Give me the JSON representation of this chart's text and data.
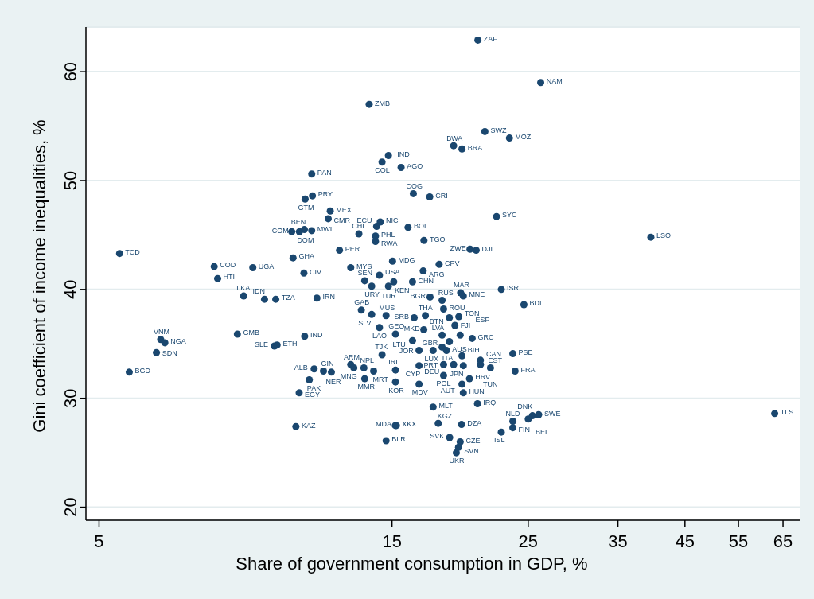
{
  "chart_data": {
    "type": "scatter",
    "xlabel": "Share of government consumption in GDP, %",
    "ylabel": "Gini coefficient of income inequalities, %",
    "x": [
      5.4,
      5.6,
      6.2,
      6.3,
      6.4,
      7.7,
      7.8,
      8.4,
      8.6,
      8.9,
      9.3,
      9.7,
      9.65,
      9.75,
      10.35,
      10.46,
      10.59,
      10.78,
      10.81,
      10.83,
      11.1,
      11.13,
      11.32,
      11.9,
      11.81,
      12.32,
      12.85,
      13.77,
      14.45,
      14.8,
      15.52,
      16.25,
      17.28,
      14.35,
      14.16,
      15.93,
      13.25,
      14.1,
      14.1,
      16.91,
      20.1,
      20.57,
      22.2,
      15.03,
      17.9,
      16.86,
      18.9,
      19.5,
      21.25,
      23.3,
      20.7,
      26.2,
      39.6,
      63.0,
      24.6,
      22.6,
      23.6,
      23.8,
      26.0,
      10.3,
      10.6,
      10.8,
      11.1,
      14.31,
      13.54,
      13.9,
      14.8,
      15.1,
      16.2,
      17.3,
      18.1,
      19.4,
      19.6,
      13.37,
      13.9,
      14.67,
      16.3,
      17.0,
      18.6,
      19.27,
      18.99,
      14.31,
      15.2,
      16.9,
      16.2,
      18.1,
      19.37,
      20.26,
      18.6,
      14.45,
      16.6,
      17.5,
      18.1,
      18.4,
      19.5,
      20.9,
      12.85,
      13.0,
      13.5,
      14.0,
      15.2,
      16.6,
      18.2,
      18.9,
      19.6,
      20.9,
      21.7,
      11.2,
      11.0,
      11.6,
      11.95,
      13.54,
      15.2,
      16.6,
      18.2,
      20.06,
      19.5,
      19.6,
      20.67,
      17.5,
      15.19,
      15.25,
      14.67,
      17.84,
      19.47,
      18.62,
      19.37,
      19.25,
      19.09,
      22.6,
      23.6,
      23.6,
      25.0,
      25.4,
      18.2
    ],
    "values": [
      43.3,
      32.4,
      34.2,
      35.4,
      35.1,
      42.1,
      41.0,
      35.9,
      39.4,
      42.0,
      39.1,
      39.1,
      34.8,
      34.9,
      42.9,
      27.4,
      30.5,
      41.5,
      35.7,
      48.3,
      50.6,
      48.6,
      39.2,
      47.2,
      46.5,
      43.6,
      42.0,
      57.0,
      51.7,
      52.3,
      51.2,
      48.8,
      48.5,
      46.2,
      45.8,
      45.7,
      45.1,
      44.9,
      44.4,
      44.5,
      43.7,
      43.6,
      46.7,
      42.6,
      42.3,
      41.7,
      53.2,
      52.9,
      54.5,
      53.9,
      62.9,
      59.0,
      44.8,
      28.6,
      38.6,
      40.0,
      34.1,
      32.5,
      28.5,
      45.3,
      45.3,
      45.5,
      45.4,
      41.3,
      40.8,
      40.3,
      40.3,
      40.7,
      40.7,
      39.3,
      39.0,
      39.7,
      39.4,
      38.1,
      37.7,
      37.6,
      37.4,
      37.6,
      37.4,
      37.5,
      36.7,
      36.5,
      35.9,
      36.3,
      35.3,
      35.8,
      35.8,
      35.5,
      35.2,
      34.0,
      34.4,
      34.4,
      34.7,
      34.4,
      33.9,
      33.5,
      33.1,
      32.8,
      32.8,
      32.5,
      32.6,
      33.0,
      33.1,
      33.1,
      33.0,
      33.1,
      32.8,
      32.7,
      31.7,
      32.5,
      32.4,
      31.8,
      31.5,
      31.3,
      32.1,
      31.8,
      31.3,
      30.5,
      29.5,
      29.2,
      27.5,
      27.5,
      26.1,
      27.7,
      27.6,
      26.4,
      26.0,
      25.5,
      25.0,
      26.9,
      27.9,
      27.3,
      28.1,
      28.4,
      38.2
    ],
    "value_labels": [
      "TCD",
      "BGD",
      "SDN",
      "VNM",
      "NGA",
      "COD",
      "HTI",
      "GMB",
      "LKA",
      "UGA",
      "IDN",
      "TZA",
      "SLE",
      "ETH",
      "GHA",
      "KAZ",
      "EGY",
      "CIV",
      "IND",
      "GTM",
      "PAN",
      "PRY",
      "IRN",
      "MEX",
      "CMR",
      "PER",
      "MYS",
      "ZMB",
      "COL",
      "HND",
      "AGO",
      "COG",
      "CRI",
      "NIC",
      "ECU",
      "BOL",
      "CHL",
      "PHL",
      "RWA",
      "TGO",
      "ZWE",
      "DJI",
      "SYC",
      "MDG",
      "CPV",
      "ARG",
      "BWA",
      "BRA",
      "SWZ",
      "MOZ",
      "ZAF",
      "NAM",
      "LSO",
      "TLS",
      "BDI",
      "ISR",
      "PSE",
      "FRA",
      "SWE",
      "COM",
      "DOM",
      "BEN",
      "MWI",
      "USA",
      "SEN",
      "URY",
      "TUR",
      "KEN",
      "CHN",
      "BGR",
      "RUS",
      "MAR",
      "MNE",
      "GAB",
      "SLV",
      "MUS",
      "SRB",
      "THA",
      "BTN",
      "TON",
      "FJI",
      "LAO",
      "GEO",
      "MKD",
      "LTU",
      "LVA",
      "ESP",
      "GRC",
      "ITA",
      "TJK",
      "JOR",
      "LUX",
      "GBR",
      "AUS",
      "BIH",
      "CAN",
      "ARM",
      "MNG",
      "NPL",
      "MRT",
      "IRL",
      "CYP",
      "PRT",
      "DEU",
      "JPN",
      "TUN",
      "EST",
      "ALB",
      "PAK",
      "GIN",
      "NER",
      "MMR",
      "KOR",
      "MDV",
      "POL",
      "HRV",
      "AUT",
      "HUN",
      "IRQ",
      "MLT",
      "MDA",
      "XKX",
      "BLR",
      "KGZ",
      "DZA",
      "SVK",
      "CZE",
      "SVN",
      "UKR",
      "ISL",
      "NLD",
      "FIN",
      "BEL",
      "DNK",
      "ROU"
    ],
    "color": "#1a476f",
    "marker": "circle",
    "log": "x",
    "grid": "y",
    "xlim": [
      4.76,
      69.4
    ],
    "xticks": [
      5,
      15,
      25,
      35,
      45,
      55,
      65
    ],
    "ylim": [
      18.8,
      64.1
    ],
    "yticks": [
      20,
      30,
      40,
      50,
      60
    ]
  }
}
